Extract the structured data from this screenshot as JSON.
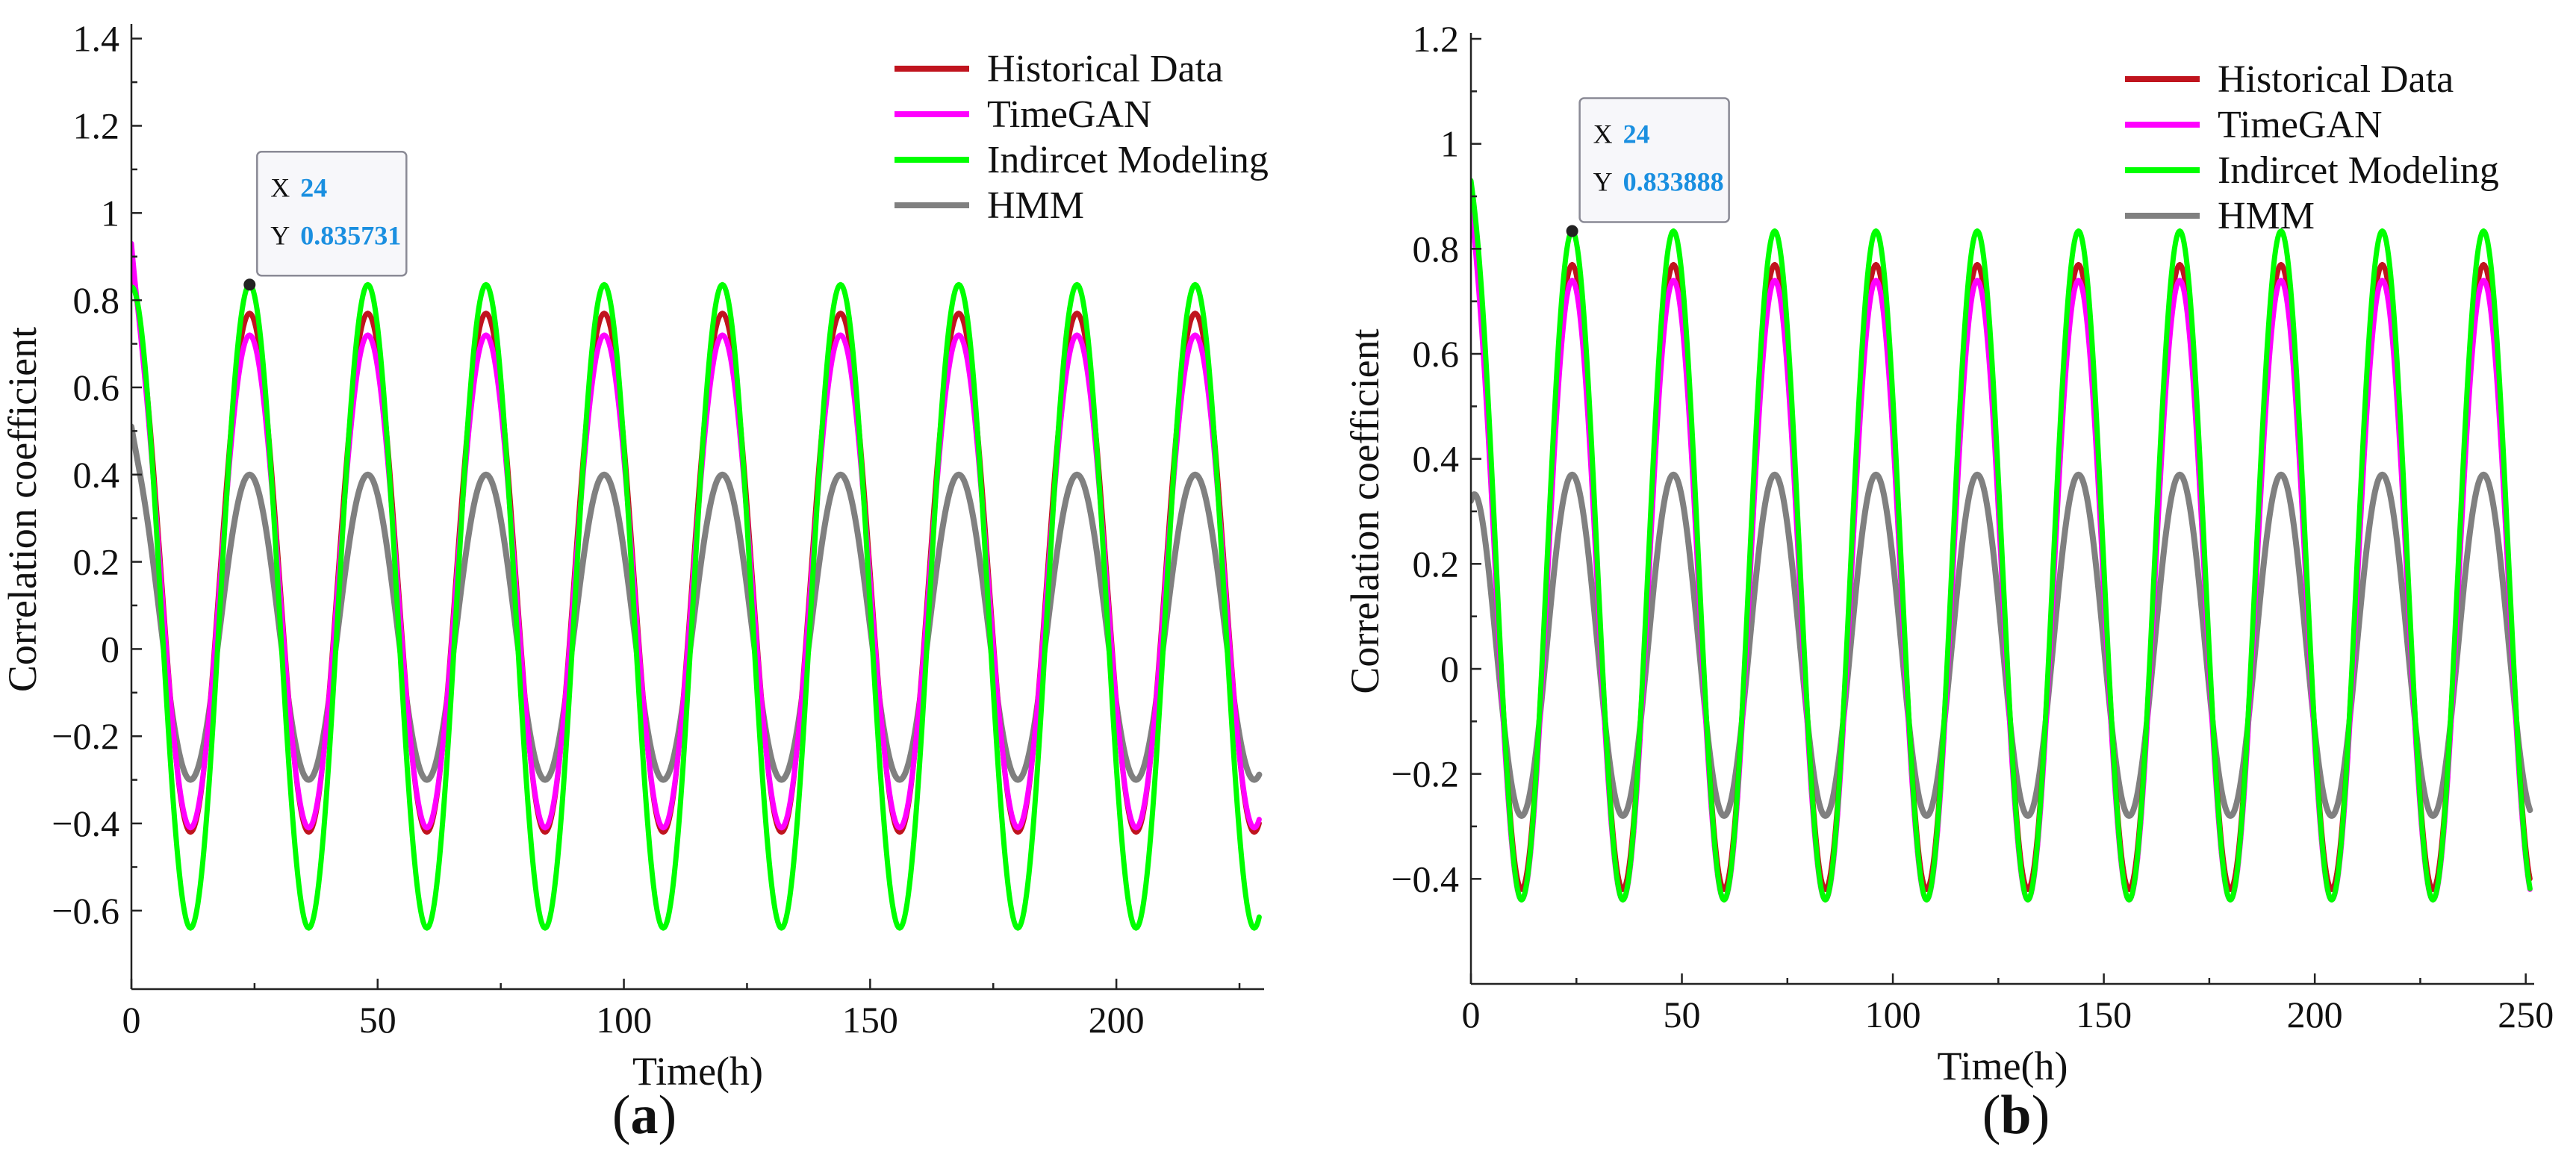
{
  "colors": {
    "Historical Data": "#c0141e",
    "TimeGAN": "#ff00ff",
    "Indircet Modeling": "#00ff00",
    "HMM": "#808080",
    "tooltip_value": "#1a8fe0"
  },
  "chart_data": [
    {
      "type": "line",
      "panel_label": "a",
      "xlabel": "Time(h)",
      "ylabel": "Correlation coefficient",
      "xlim": [
        0,
        230
      ],
      "ylim": [
        -0.78,
        1.42
      ],
      "xticks": [
        {
          "value": 0,
          "label": "0"
        },
        {
          "value": 50,
          "label": "50"
        },
        {
          "value": 100,
          "label": "100"
        },
        {
          "value": 150,
          "label": "150"
        },
        {
          "value": 200,
          "label": "200"
        }
      ],
      "yticks": [
        {
          "value": -0.6,
          "label": "−0.6"
        },
        {
          "value": -0.4,
          "label": "−0.4"
        },
        {
          "value": -0.2,
          "label": "−0.2"
        },
        {
          "value": 0,
          "label": "0"
        },
        {
          "value": 0.2,
          "label": "0.2"
        },
        {
          "value": 0.4,
          "label": "0.4"
        },
        {
          "value": 0.6,
          "label": "0.6"
        },
        {
          "value": 0.8,
          "label": "0.8"
        },
        {
          "value": 1,
          "label": "1"
        },
        {
          "value": 1.2,
          "label": "1.2"
        },
        {
          "value": 1.4,
          "label": "1.4"
        }
      ],
      "legend_position": "top-right",
      "series": [
        {
          "name": "Historical Data",
          "period": 24,
          "start": 0.88,
          "peak": 0.77,
          "trough": -0.42,
          "x_end": 229
        },
        {
          "name": "TimeGAN",
          "period": 24,
          "start": 0.93,
          "peak": 0.72,
          "trough": -0.41,
          "x_end": 229
        },
        {
          "name": "Indircet Modeling",
          "period": 24,
          "start": 0.83,
          "peak": 0.835731,
          "trough": -0.64,
          "x_end": 229
        },
        {
          "name": "HMM",
          "period": 24,
          "start": 0.51,
          "peak": 0.4,
          "trough": -0.3,
          "x_end": 229
        }
      ],
      "tooltip": {
        "x_label": "X",
        "x_value": "24",
        "y_label": "Y",
        "y_value": "0.835731",
        "x": 24,
        "y": 0.835731
      }
    },
    {
      "type": "line",
      "panel_label": "b",
      "xlabel": "Time(h)",
      "ylabel": "Correlation coefficient",
      "xlim": [
        0,
        252
      ],
      "ylim": [
        -0.6,
        1.2
      ],
      "xticks": [
        {
          "value": 0,
          "label": "0"
        },
        {
          "value": 50,
          "label": "50"
        },
        {
          "value": 100,
          "label": "100"
        },
        {
          "value": 150,
          "label": "150"
        },
        {
          "value": 200,
          "label": "200"
        },
        {
          "value": 250,
          "label": "250"
        }
      ],
      "yticks": [
        {
          "value": -0.4,
          "label": "−0.4"
        },
        {
          "value": -0.2,
          "label": "−0.2"
        },
        {
          "value": 0,
          "label": "0"
        },
        {
          "value": 0.2,
          "label": "0.2"
        },
        {
          "value": 0.4,
          "label": "0.4"
        },
        {
          "value": 0.6,
          "label": "0.6"
        },
        {
          "value": 0.8,
          "label": "0.8"
        },
        {
          "value": 1,
          "label": "1"
        },
        {
          "value": 1.2,
          "label": "1.2"
        }
      ],
      "legend_position": "top-right",
      "series": [
        {
          "name": "Historical Data",
          "period": 24,
          "start": 0.88,
          "peak": 0.77,
          "trough": -0.42,
          "x_end": 251
        },
        {
          "name": "TimeGAN",
          "period": 24,
          "start": 0.9,
          "peak": 0.74,
          "trough": -0.44,
          "x_end": 251
        },
        {
          "name": "Indircet Modeling",
          "period": 24,
          "start": 0.93,
          "peak": 0.833888,
          "trough": -0.44,
          "x_end": 251
        },
        {
          "name": "HMM",
          "period": 24,
          "start": 0.32,
          "peak": 0.37,
          "trough": -0.28,
          "x_end": 251
        }
      ],
      "tooltip": {
        "x_label": "X",
        "x_value": "24",
        "y_label": "Y",
        "y_value": "0.833888",
        "x": 24,
        "y": 0.833888
      }
    }
  ]
}
